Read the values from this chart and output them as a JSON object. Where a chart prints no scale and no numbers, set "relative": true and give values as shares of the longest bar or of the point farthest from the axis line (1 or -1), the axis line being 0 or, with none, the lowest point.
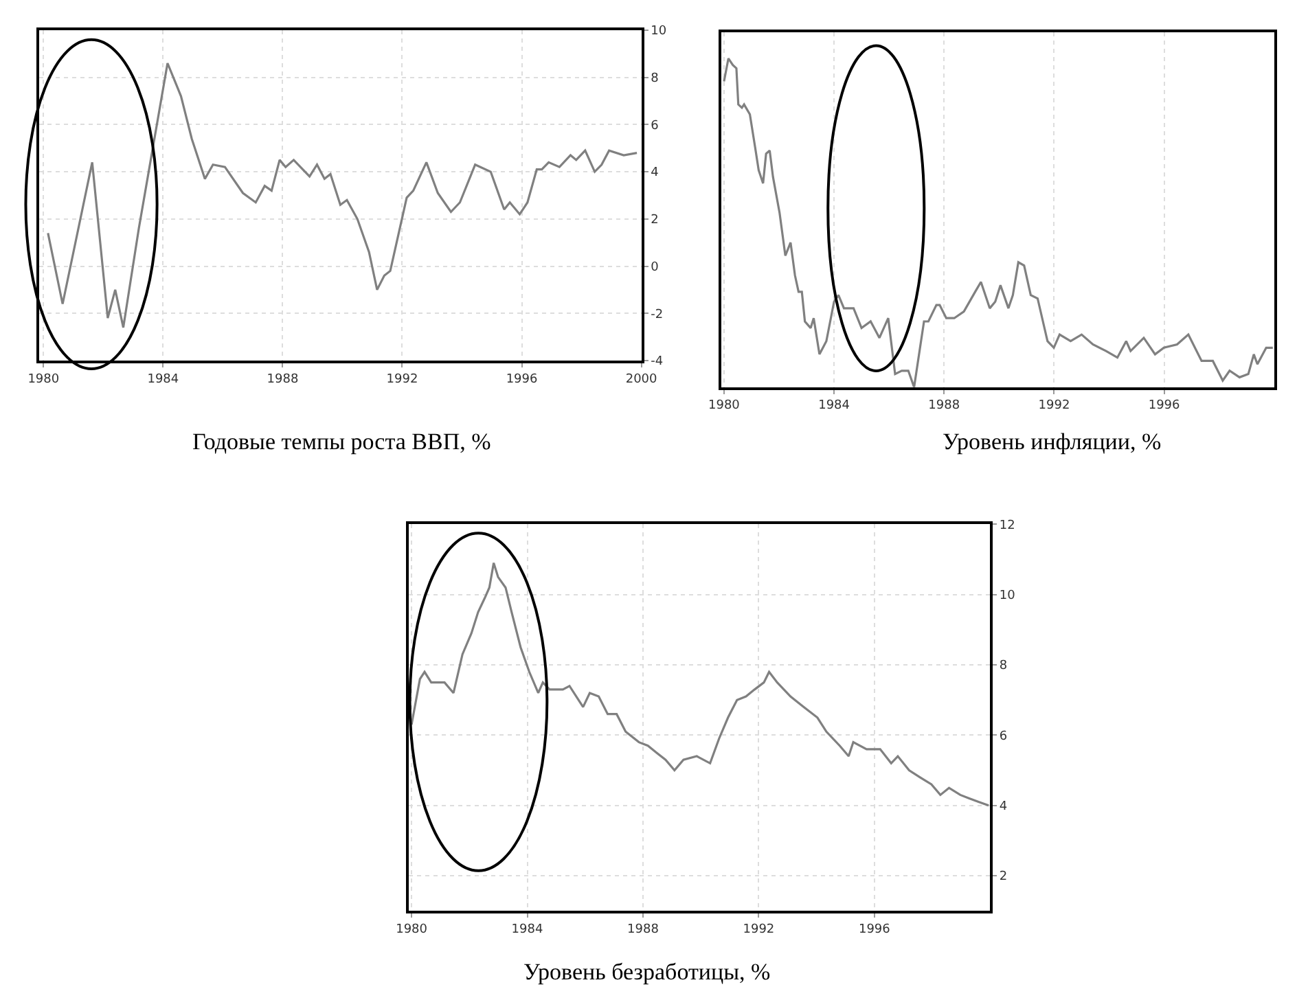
{
  "chart_data": [
    {
      "type": "line",
      "title": "Годовые темпы роста ВВП, %",
      "color": "#808080",
      "grid": true,
      "xlim": [
        1979.85,
        2000
      ],
      "xticks": [
        1980,
        1984,
        1988,
        1992,
        1996,
        2000
      ],
      "ylim": [
        -4,
        10
      ],
      "yticks": [
        -4,
        -2,
        0,
        2,
        4,
        6,
        8,
        10
      ],
      "x": [
        1980.15,
        1980.64,
        1981.63,
        1982.15,
        1982.4,
        1982.67,
        1983.19,
        1984.15,
        1984.6,
        1984.96,
        1985.4,
        1985.67,
        1986.07,
        1986.67,
        1987.1,
        1987.4,
        1987.63,
        1987.9,
        1988.1,
        1988.37,
        1988.9,
        1989.15,
        1989.4,
        1989.6,
        1989.93,
        1990.15,
        1990.5,
        1990.89,
        1991.16,
        1991.4,
        1991.6,
        1992.15,
        1992.37,
        1992.81,
        1993.19,
        1993.63,
        1993.93,
        1994.44,
        1994.96,
        1995.41,
        1995.6,
        1995.93,
        1996.19,
        1996.5,
        1996.67,
        1996.9,
        1997.26,
        1997.63,
        1997.82,
        1998.12,
        1998.44,
        1998.67,
        1998.92,
        1999.41,
        1999.85
      ],
      "values": [
        1.4,
        -1.6,
        4.4,
        -2.2,
        -1.0,
        -2.6,
        1.6,
        8.6,
        7.2,
        5.4,
        3.7,
        4.3,
        4.2,
        3.1,
        2.7,
        3.4,
        3.2,
        4.5,
        4.2,
        4.5,
        3.8,
        4.3,
        3.7,
        3.9,
        2.6,
        2.8,
        2.0,
        0.6,
        -1.0,
        -0.4,
        -0.2,
        2.9,
        3.2,
        4.4,
        3.1,
        2.3,
        2.7,
        4.3,
        4.0,
        2.4,
        2.7,
        2.2,
        2.7,
        4.1,
        4.1,
        4.4,
        4.2,
        4.7,
        4.5,
        4.9,
        4.0,
        4.3,
        4.9,
        4.7,
        4.8
      ]
    },
    {
      "type": "line",
      "title": "Уровень инфляции, %",
      "color": "#808080",
      "grid": "x",
      "relative": true,
      "xlim": [
        1979.9,
        2000
      ],
      "xticks": [
        1980,
        1984,
        1988,
        1992,
        1996
      ],
      "x": [
        1980.0,
        1980.16,
        1980.32,
        1980.45,
        1980.52,
        1980.65,
        1980.73,
        1980.94,
        1981.13,
        1981.26,
        1981.42,
        1981.53,
        1981.66,
        1981.78,
        1982.02,
        1982.23,
        1982.42,
        1982.58,
        1982.71,
        1982.83,
        1982.94,
        1983.15,
        1983.26,
        1983.47,
        1983.72,
        1984.0,
        1984.16,
        1984.36,
        1984.71,
        1985.0,
        1985.33,
        1985.65,
        1985.97,
        1986.22,
        1986.46,
        1986.7,
        1986.91,
        1987.27,
        1987.43,
        1987.72,
        1987.84,
        1988.08,
        1988.37,
        1988.72,
        1989.13,
        1989.34,
        1989.66,
        1989.86,
        1990.05,
        1990.34,
        1990.5,
        1990.7,
        1990.91,
        1991.15,
        1991.4,
        1991.76,
        1991.99,
        1992.2,
        1992.6,
        1993.0,
        1993.41,
        1993.89,
        1994.3,
        1994.62,
        1994.78,
        1995.26,
        1995.67,
        1995.99,
        1996.47,
        1996.88,
        1997.36,
        1997.77,
        1998.13,
        1998.38,
        1998.74,
        1999.06,
        1999.26,
        1999.39,
        1999.71,
        1999.95
      ],
      "values": [
        0.93,
        1.0,
        0.98,
        0.97,
        0.86,
        0.85,
        0.86,
        0.83,
        0.73,
        0.66,
        0.62,
        0.71,
        0.72,
        0.64,
        0.53,
        0.4,
        0.44,
        0.34,
        0.29,
        0.29,
        0.2,
        0.18,
        0.21,
        0.1,
        0.14,
        0.26,
        0.28,
        0.24,
        0.24,
        0.18,
        0.2,
        0.15,
        0.21,
        0.04,
        0.05,
        0.05,
        0.0,
        0.2,
        0.2,
        0.25,
        0.25,
        0.21,
        0.21,
        0.23,
        0.29,
        0.32,
        0.24,
        0.26,
        0.31,
        0.24,
        0.28,
        0.38,
        0.37,
        0.28,
        0.27,
        0.14,
        0.12,
        0.16,
        0.14,
        0.16,
        0.13,
        0.11,
        0.09,
        0.14,
        0.11,
        0.15,
        0.1,
        0.12,
        0.13,
        0.16,
        0.08,
        0.08,
        0.02,
        0.05,
        0.03,
        0.04,
        0.1,
        0.07,
        0.12,
        0.12
      ]
    },
    {
      "type": "line",
      "title": "Уровень безработицы, %",
      "color": "#808080",
      "grid": true,
      "xlim": [
        1979.9,
        2000
      ],
      "xticks": [
        1980,
        1984,
        1988,
        1992,
        1996
      ],
      "ylim": [
        1,
        12
      ],
      "yticks": [
        2,
        4,
        6,
        8,
        10,
        12
      ],
      "x": [
        1980.0,
        1980.29,
        1980.45,
        1980.68,
        1980.91,
        1981.14,
        1981.45,
        1981.76,
        1982.07,
        1982.3,
        1982.53,
        1982.69,
        1982.84,
        1982.99,
        1983.25,
        1983.46,
        1983.77,
        1984.07,
        1984.38,
        1984.54,
        1984.77,
        1985.23,
        1985.46,
        1985.93,
        1986.16,
        1986.47,
        1986.78,
        1987.09,
        1987.4,
        1987.86,
        1988.17,
        1988.47,
        1988.78,
        1989.09,
        1989.4,
        1989.86,
        1990.32,
        1990.63,
        1990.94,
        1991.25,
        1991.56,
        1991.86,
        1992.18,
        1992.36,
        1992.64,
        1993.1,
        1993.56,
        1994.03,
        1994.34,
        1994.8,
        1995.11,
        1995.27,
        1995.73,
        1996.2,
        1996.58,
        1996.81,
        1997.2,
        1997.58,
        1997.97,
        1998.28,
        1998.58,
        1998.97,
        1999.28,
        1999.6,
        1999.95
      ],
      "values": [
        6.3,
        7.6,
        7.8,
        7.5,
        7.5,
        7.5,
        7.2,
        8.3,
        8.9,
        9.5,
        9.9,
        10.2,
        10.9,
        10.5,
        10.2,
        9.5,
        8.5,
        7.8,
        7.2,
        7.5,
        7.3,
        7.3,
        7.4,
        6.8,
        7.2,
        7.1,
        6.6,
        6.6,
        6.1,
        5.8,
        5.7,
        5.5,
        5.3,
        5.0,
        5.3,
        5.4,
        5.2,
        5.9,
        6.5,
        7.0,
        7.1,
        7.3,
        7.5,
        7.8,
        7.5,
        7.1,
        6.8,
        6.5,
        6.1,
        5.7,
        5.4,
        5.8,
        5.6,
        5.6,
        5.2,
        5.4,
        5.0,
        4.8,
        4.6,
        4.3,
        4.5,
        4.3,
        4.2,
        4.1,
        4.0
      ]
    }
  ]
}
